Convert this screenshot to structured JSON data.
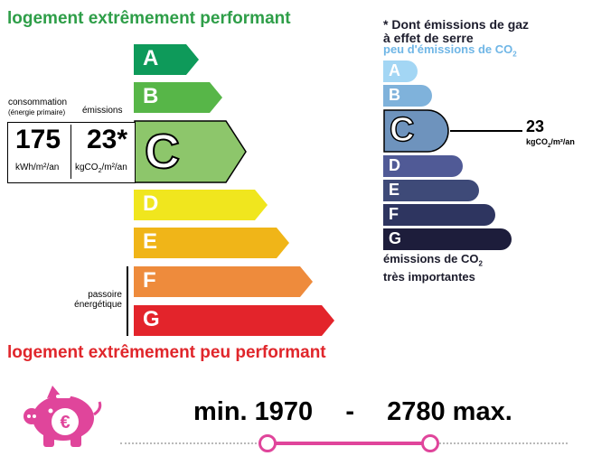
{
  "header": {
    "title_top": "logement extrêmement performant"
  },
  "footer": {
    "title_bottom": "logement extrêmement peu performant"
  },
  "dpe": {
    "scale": [
      {
        "letter": "A",
        "color": "#0e9a5a"
      },
      {
        "letter": "B",
        "color": "#57b648"
      },
      {
        "letter": "C",
        "color": "#8dc66b"
      },
      {
        "letter": "D",
        "color": "#f0e61e"
      },
      {
        "letter": "E",
        "color": "#f0b518"
      },
      {
        "letter": "F",
        "color": "#ee8b3c"
      },
      {
        "letter": "G",
        "color": "#e3242b"
      }
    ],
    "current_class": "C",
    "consumption_label_1": "consommation",
    "consumption_label_2": "(énergie primaire)",
    "emissions_label": "émissions",
    "consumption_value": "175",
    "consumption_unit": "kWh/m²/an",
    "emissions_value": "23*",
    "emissions_unit": "kgCO",
    "emissions_unit_sub": "2",
    "emissions_unit_end": "/m²/an",
    "passoire_line1": "passoire",
    "passoire_line2": "énergétique"
  },
  "ges": {
    "title_line1": "* Dont émissions de gaz",
    "title_line2": "à effet de serre",
    "subtitle": "peu d'émissions de CO",
    "subtitle_sub": "2",
    "scale": [
      {
        "letter": "A",
        "color": "#a3d6f4"
      },
      {
        "letter": "B",
        "color": "#7fb2db"
      },
      {
        "letter": "C",
        "color": "#6e93bd"
      },
      {
        "letter": "D",
        "color": "#505a96"
      },
      {
        "letter": "E",
        "color": "#3e4a78"
      },
      {
        "letter": "F",
        "color": "#2e3560"
      },
      {
        "letter": "G",
        "color": "#1d1d3b"
      }
    ],
    "current_class": "C",
    "value": "23",
    "unit": "kgCO",
    "unit_sub": "2",
    "unit_end": "/m²/an",
    "footer_line1": "émissions de CO",
    "footer_line1_sub": "2",
    "footer_line2": "très importantes"
  },
  "cost": {
    "min_label": "min. 1970",
    "separator": "-",
    "max_label": "2780 max.",
    "accent_color": "#e0459b",
    "icon": "piggy-bank-euro-icon"
  }
}
